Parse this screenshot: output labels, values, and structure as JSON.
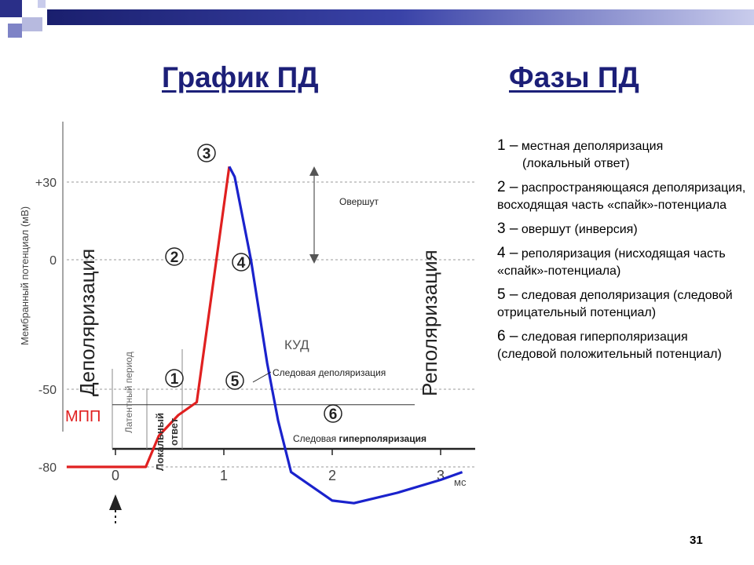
{
  "titles": {
    "left": "График ПД",
    "right": "Фазы ПД"
  },
  "chart_data": {
    "type": "line",
    "ylabel": "Мембранный потенциал (мВ)",
    "xlabel": "мс",
    "y_ticks": [
      "+30",
      "0",
      "-50",
      "-80"
    ],
    "y_tick_values": [
      30,
      0,
      -50,
      -80
    ],
    "x_ticks": [
      "0",
      "1",
      "2",
      "3"
    ],
    "x_tick_values": [
      0,
      1,
      2,
      3
    ],
    "xlim": [
      -0.45,
      3.2
    ],
    "ylim": [
      -100,
      48
    ],
    "series": [
      {
        "name": "red",
        "color": "#e02020",
        "x": [
          -0.45,
          0.28,
          0.4,
          0.58,
          0.75,
          1.05
        ],
        "y": [
          -80,
          -80,
          -68,
          -60,
          -55,
          36
        ]
      },
      {
        "name": "blue",
        "color": "#1a22cc",
        "x": [
          1.05,
          1.1,
          1.25,
          1.4,
          1.5,
          1.62,
          2.0,
          2.2,
          2.6,
          3.0,
          3.2
        ],
        "y": [
          36,
          32,
          0,
          -40,
          -62,
          -82,
          -93,
          -94,
          -90,
          -85,
          -82
        ]
      }
    ],
    "reference_lines": {
      "y": [
        30,
        0,
        -50,
        -80
      ],
      "kud_y": -56
    },
    "labels": {
      "kud": "КУД",
      "mpp": "МПП",
      "overshoot": "Овершут",
      "trace_depol": "Следовая деполяризация",
      "trace_hyper_prefix": "Следовая",
      "trace_hyper_bold": "гиперполяризация",
      "depolarization": "Деполяризация",
      "repolarization": "Реполяризация",
      "latent": "Латентный период",
      "local1": "Локальный",
      "local2": "ответ"
    },
    "markers": [
      "1",
      "2",
      "3",
      "4",
      "5",
      "6"
    ]
  },
  "phases": [
    {
      "num": "1 –",
      "text": "местная деполяризация",
      "sub": "(локальный ответ)"
    },
    {
      "num": "2 –",
      "text": "распространяющаяся деполяризация, восходящая часть «спайк»-потенциала",
      "sub": ""
    },
    {
      "num": "3 –",
      "text": "овершут (инверсия)",
      "sub": ""
    },
    {
      "num": "4 –",
      "text": "реполяризация (нисходящая часть «спайк»-потенциала)",
      "sub": ""
    },
    {
      "num": "5 –",
      "text": "следовая деполяризация (следовой отрицательный потенциал)",
      "sub": ""
    },
    {
      "num": "6 –",
      "text": "следовая гиперполяризация (следовой положительный потенциал)",
      "sub": ""
    }
  ],
  "page_number": "31",
  "colors": {
    "title": "#1c1f78",
    "depol": "#e02020",
    "repol": "#1a22cc"
  }
}
